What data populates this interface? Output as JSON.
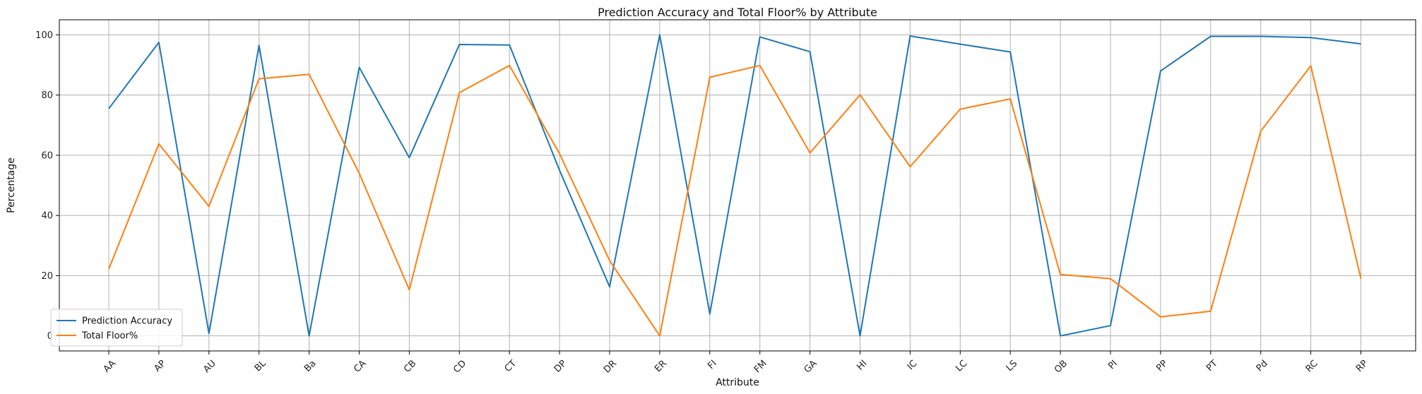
{
  "chart_data": {
    "type": "line",
    "title": "Prediction Accuracy and Total Floor% by Attribute",
    "xlabel": "Attribute",
    "ylabel": "Percentage",
    "categories": [
      "AA",
      "AP",
      "AU",
      "BL",
      "Ba",
      "CA",
      "CB",
      "CD",
      "CT",
      "DP",
      "DR",
      "ER",
      "FI",
      "FM",
      "GA",
      "HI",
      "IC",
      "LC",
      "LS",
      "OB",
      "PI",
      "PP",
      "PT",
      "Pd",
      "RC",
      "RP"
    ],
    "ylim": [
      -5,
      105
    ],
    "yticks": [
      0,
      20,
      40,
      60,
      80,
      100
    ],
    "grid": true,
    "legend": "bottom-left",
    "series": [
      {
        "name": "Prediction Accuracy",
        "color": "#1f77b4",
        "values": [
          75.5,
          97.5,
          0.8,
          96.5,
          0.0,
          89.2,
          59.2,
          96.8,
          96.6,
          55.0,
          16.3,
          100.0,
          7.3,
          99.3,
          94.4,
          0.0,
          99.6,
          96.9,
          94.3,
          0.0,
          3.4,
          88.0,
          99.5,
          99.5,
          99.1,
          97.0
        ]
      },
      {
        "name": "Total Floor%",
        "color": "#ff7f0e",
        "values": [
          22.2,
          63.8,
          43.0,
          85.4,
          86.9,
          54.0,
          15.3,
          80.8,
          89.8,
          60.5,
          25.0,
          0.0,
          85.9,
          89.8,
          60.8,
          80.1,
          56.2,
          75.3,
          78.7,
          20.4,
          19.0,
          6.3,
          8.2,
          68.0,
          89.7,
          19.0
        ]
      }
    ]
  }
}
